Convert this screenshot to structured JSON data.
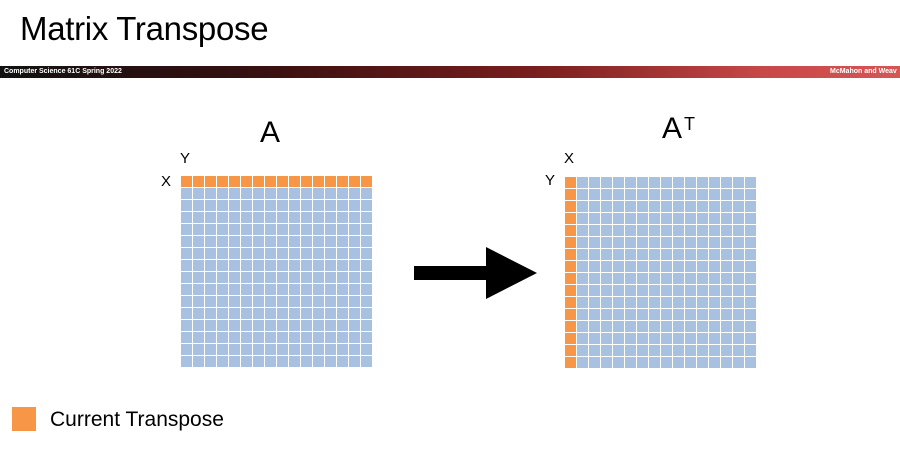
{
  "slide": {
    "title": "Matrix Transpose",
    "banner_left": "Computer Science 61C Spring 2022",
    "banner_right": "McMahon and Weav"
  },
  "colors": {
    "highlight": "#f79646",
    "cell": "#a9c1e0",
    "banner_start": "#111111",
    "banner_end": "#d65656"
  },
  "matrices": {
    "source": {
      "title": "A",
      "superscript": "",
      "top_label": "Y",
      "side_label": "X",
      "rows": 16,
      "cols": 16,
      "highlight": "first-row"
    },
    "target": {
      "title": "A",
      "superscript": "T",
      "top_label": "X",
      "side_label": "Y",
      "rows": 16,
      "cols": 16,
      "highlight": "first-column"
    }
  },
  "arrow_icon": "right-arrow-icon",
  "legend": {
    "label": "Current Transpose",
    "color": "#f79646"
  }
}
